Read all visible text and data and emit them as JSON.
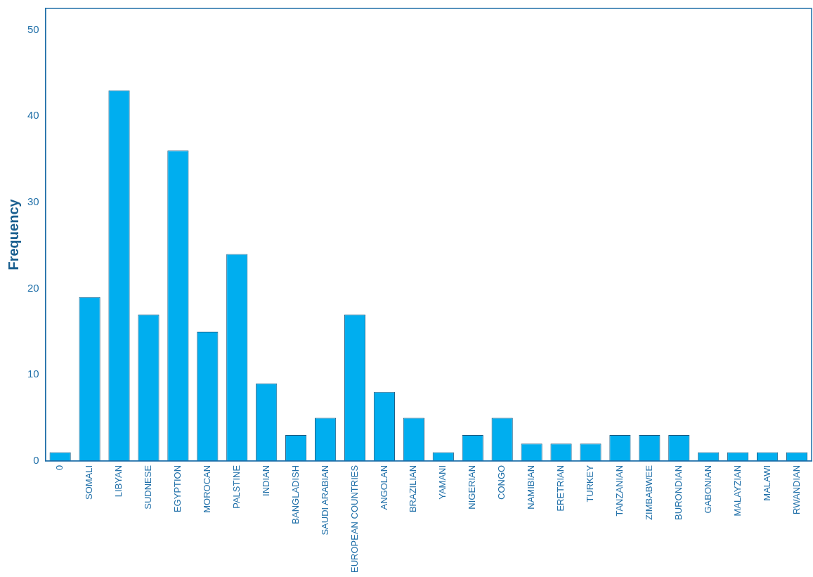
{
  "chart_data": {
    "type": "bar",
    "ylabel": "Frequency",
    "categories": [
      "0",
      "SOMALI",
      "LIBYAN",
      "SUDNESE",
      "EGYPTION",
      "MOROCAN",
      "PALSTINE",
      "INDIAN",
      "BANGLADISH",
      "SAUDI ARABIAN",
      "EUROPEAN COUNTRIES",
      "ANGOLAN",
      "BRAZILIAN",
      "YAMANI",
      "NIGERIAN",
      "CONGO",
      "NAMIBIAN",
      "ERETRIAN",
      "TURKEY",
      "TANZANIAN",
      "ZIMBABWEE",
      "BURONDIAN",
      "GABONIAN",
      "MALAYZIAN",
      "MALAWI",
      "RWANDIAN"
    ],
    "values": [
      1,
      19,
      43,
      17,
      36,
      15,
      24,
      9,
      3,
      5,
      17,
      8,
      5,
      1,
      3,
      5,
      2,
      2,
      2,
      3,
      3,
      3,
      1,
      1,
      1,
      1
    ],
    "color": "#00aeef",
    "ylim": [
      0,
      52.5
    ],
    "yticks": [
      0,
      10,
      20,
      30,
      40,
      50
    ],
    "grid": false,
    "legend": false
  }
}
